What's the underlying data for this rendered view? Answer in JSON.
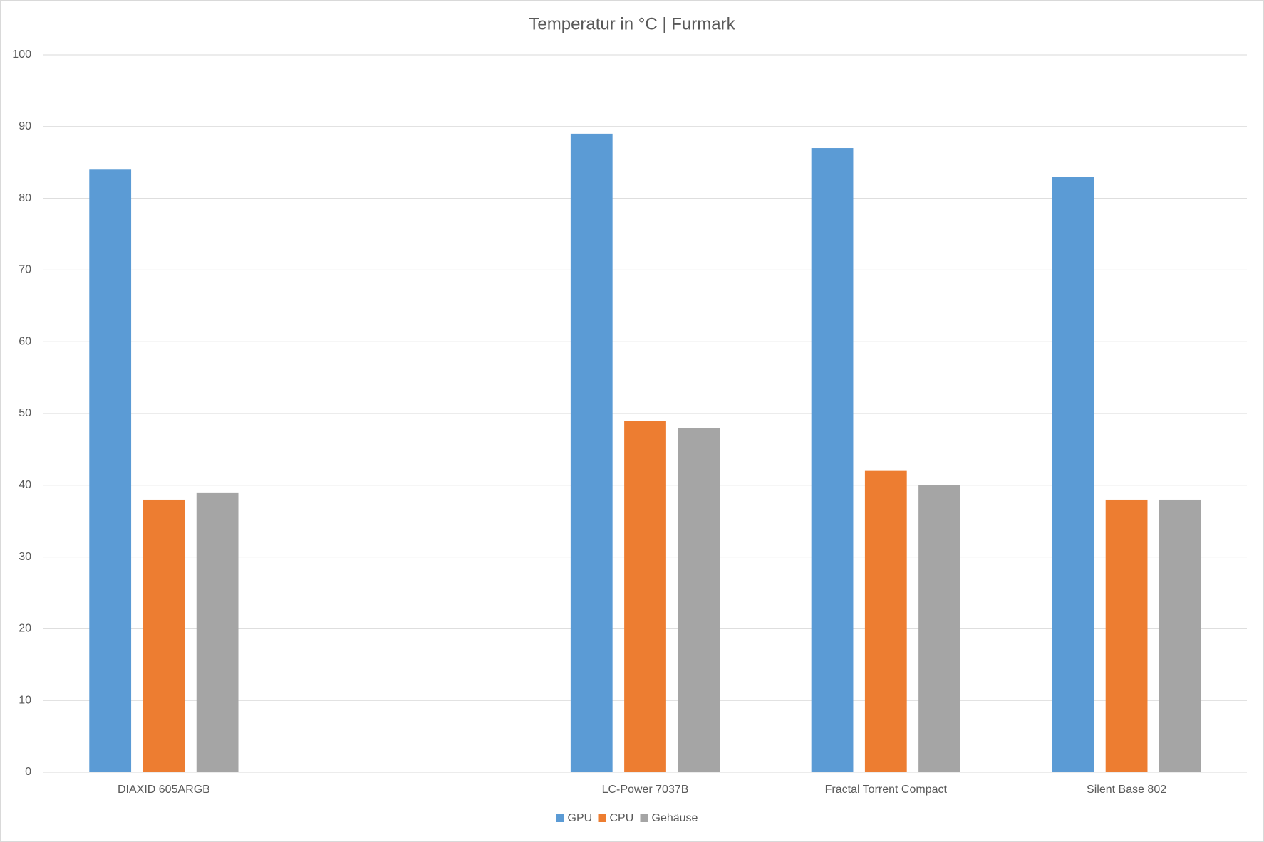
{
  "chart_data": {
    "type": "bar",
    "title": "Temperatur in °C | Furmark",
    "categories": [
      "DIAXID 605ARGB",
      null,
      "LC-Power 7037B",
      "Fractal Torrent Compact",
      "Silent Base 802"
    ],
    "series": [
      {
        "name": "GPU",
        "color": "#5b9bd5",
        "values": [
          84,
          null,
          89,
          87,
          83
        ]
      },
      {
        "name": "CPU",
        "color": "#ed7d31",
        "values": [
          38,
          null,
          49,
          42,
          38
        ]
      },
      {
        "name": "Gehäuse",
        "color": "#a5a5a5",
        "values": [
          39,
          null,
          48,
          40,
          38
        ]
      }
    ],
    "ylim": [
      0,
      100
    ],
    "yticks": [
      0,
      10,
      20,
      30,
      40,
      50,
      60,
      70,
      80,
      90,
      100
    ],
    "grid": true,
    "legend": "bottom"
  }
}
